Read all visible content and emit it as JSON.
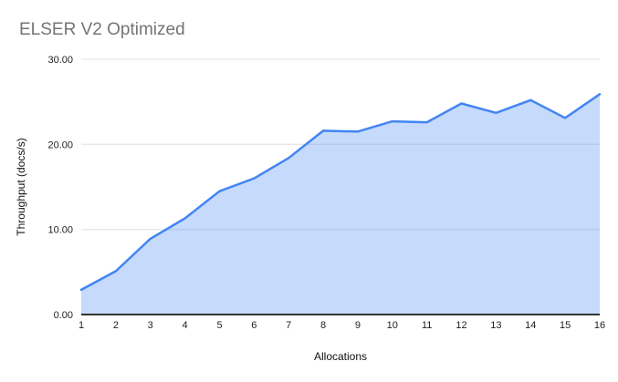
{
  "chart_data": {
    "type": "area",
    "title": "ELSER V2 Optimized",
    "xlabel": "Allocations",
    "ylabel": "Throughput (docs/s)",
    "categories": [
      "1",
      "2",
      "3",
      "4",
      "5",
      "6",
      "7",
      "8",
      "9",
      "10",
      "11",
      "12",
      "13",
      "14",
      "15",
      "16"
    ],
    "values": [
      2.9,
      5.1,
      8.9,
      11.3,
      14.5,
      16.0,
      18.4,
      21.6,
      21.5,
      22.7,
      22.6,
      24.8,
      23.7,
      25.2,
      23.1,
      25.9
    ],
    "ylim": [
      0,
      30
    ],
    "y_ticks": [
      {
        "label": "0.00",
        "value": 0
      },
      {
        "label": "10.00",
        "value": 10
      },
      {
        "label": "20.00",
        "value": 20
      },
      {
        "label": "30.00",
        "value": 30
      }
    ],
    "grid": "horizontal",
    "legend_position": "none",
    "colors": {
      "line": "#4285f4",
      "fill": "rgba(66,133,244,0.30)",
      "gridline": "#e0e0e0",
      "axis_line": "#333333",
      "title_text": "#757575",
      "tick_text": "#1f1f1f",
      "axis_title_text": "#111111"
    }
  }
}
